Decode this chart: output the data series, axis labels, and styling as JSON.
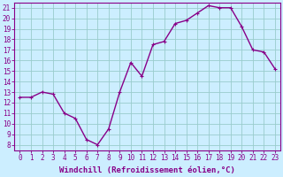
{
  "hours": [
    0,
    1,
    2,
    3,
    4,
    5,
    6,
    7,
    8,
    9,
    10,
    11,
    12,
    13,
    14,
    15,
    16,
    17,
    18,
    19,
    20,
    21,
    22,
    23
  ],
  "values": [
    12.5,
    12.5,
    13.0,
    12.8,
    11.0,
    10.5,
    8.5,
    8.0,
    9.5,
    13.0,
    15.8,
    14.5,
    17.5,
    17.8,
    19.5,
    19.8,
    20.5,
    21.2,
    21.0,
    21.0,
    19.2,
    17.0,
    16.8,
    15.2
  ],
  "line_color": "#880088",
  "marker": "+",
  "bg_color": "#cceeff",
  "grid_color": "#99cccc",
  "xlabel": "Windchill (Refroidissement éolien,°C)",
  "ylim_min": 7.5,
  "ylim_max": 21.5,
  "yticks": [
    8,
    9,
    10,
    11,
    12,
    13,
    14,
    15,
    16,
    17,
    18,
    19,
    20,
    21
  ],
  "xticks": [
    0,
    1,
    2,
    3,
    4,
    5,
    6,
    7,
    8,
    9,
    10,
    11,
    12,
    13,
    14,
    15,
    16,
    17,
    18,
    19,
    20,
    21,
    22,
    23
  ],
  "tick_color": "#880088",
  "xlabel_fontsize": 6.5,
  "tick_fontsize": 5.5,
  "spine_color": "#880088",
  "linewidth": 1.0,
  "markersize": 3,
  "markeredgewidth": 0.8
}
